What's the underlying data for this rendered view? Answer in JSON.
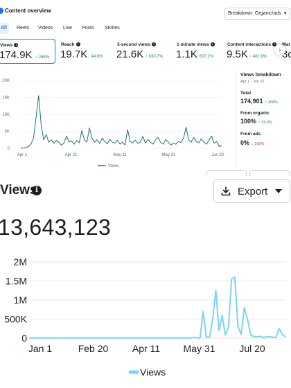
{
  "header": {
    "title": "Content overview",
    "breakdown_label": "Breakdown: Organic/ads"
  },
  "tabs": [
    {
      "label": "All",
      "active": true
    },
    {
      "label": "Reels",
      "active": false
    },
    {
      "label": "Videos",
      "active": false
    },
    {
      "label": "Live",
      "active": false
    },
    {
      "label": "Posts",
      "active": false
    },
    {
      "label": "Stories",
      "active": false
    }
  ],
  "metrics": [
    {
      "label": "Views",
      "value": "174.9K",
      "change": "↑ 268%",
      "selected": true
    },
    {
      "label": "Reach",
      "value": "19.7K",
      "change": "↑ 44.8%"
    },
    {
      "label": "3-second views",
      "value": "21.6K",
      "change": "↑ 630.7%"
    },
    {
      "label": "1-minute views",
      "value": "1.1K",
      "change": "↑ 507.2%"
    },
    {
      "label": "Content interactions",
      "value": "9.5K",
      "change": "↑ 482.9%"
    },
    {
      "label": "Wat",
      "value": "3d"
    }
  ],
  "icons": {
    "next": "chevron-right-icon",
    "info": "info-icon",
    "export": "download-icon",
    "caret": "caret-down-icon"
  },
  "colors": {
    "accent": "#1877f2",
    "small_line": "#1f6f73",
    "big_line": "#7ad3f7",
    "positive": "#1e8e3e",
    "negative": "#d93025"
  },
  "views_breakdown": {
    "title": "Views breakdown",
    "dates": "Apr 1 - Jun 22",
    "total_label": "Total",
    "total_value": "174,901",
    "total_change": "↑ 268%",
    "organic_label": "From organic",
    "organic_value": "100%",
    "organic_change": "↑ 29.9%",
    "ads_label": "From ads",
    "ads_value": "0%",
    "ads_change": "↓ 100%"
  },
  "views_section": {
    "title": "Views",
    "export_label": "Export",
    "total": "13,643,123"
  },
  "chart_data": [
    {
      "type": "line",
      "x_ticks": [
        "Apr 1",
        "Apr 21",
        "May 11",
        "May 31",
        "Jun 20"
      ],
      "y_ticks": [
        "0",
        "5K",
        "10K",
        "15K",
        "20K"
      ],
      "ylim": [
        0,
        20000
      ],
      "series": [
        {
          "name": "Views",
          "values": [
            0,
            100,
            200,
            500,
            1200,
            3000,
            9000,
            15500,
            7000,
            2500,
            4000,
            1800,
            2500,
            1500,
            2300,
            1700,
            900,
            1600,
            3600,
            1800,
            2200,
            1200,
            2300,
            1600,
            5200,
            2500,
            1800,
            6000,
            3000,
            1800,
            2500,
            1400,
            3000,
            2000,
            1300,
            2600,
            1800,
            1500,
            2400,
            1200,
            1800,
            1000,
            5500,
            2000,
            1600,
            2400,
            1400,
            1800,
            3500,
            1500,
            2600,
            1800,
            1200,
            2500,
            3200,
            1700,
            1200,
            2600,
            1800,
            1000,
            1500,
            1200,
            2000,
            1700,
            3000,
            6200,
            2500,
            1800,
            3200,
            2000,
            1600,
            2800,
            1800,
            1200,
            2400,
            3600,
            1500,
            2000,
            500,
            800
          ]
        }
      ]
    },
    {
      "type": "line",
      "x_ticks": [
        "Jan 1",
        "Feb 20",
        "Apr 11",
        "May 31",
        "Jul 20"
      ],
      "y_ticks": [
        "0",
        "500K",
        "1M",
        "1.5M",
        "2M"
      ],
      "ylim": [
        0,
        2000000
      ],
      "series": [
        {
          "name": "Views",
          "values": [
            5000,
            3000,
            8000,
            4000,
            6000,
            3000,
            5000,
            4000,
            7000,
            3000,
            4000,
            5000,
            3000,
            6000,
            4000,
            5000,
            3000,
            4000,
            5000,
            3000,
            4000,
            6000,
            3000,
            5000,
            4000,
            3000,
            5000,
            4000,
            6000,
            3000,
            4000,
            5000,
            3000,
            4000,
            5000,
            3000,
            6000,
            4000,
            5000,
            3000,
            4000,
            5000,
            3000,
            4000,
            6000,
            3000,
            5000,
            4000,
            3000,
            5000,
            4000,
            3000,
            20000,
            4000,
            6000,
            700000,
            30000,
            20000,
            500000,
            1250000,
            200000,
            600000,
            80000,
            300000,
            1550000,
            1600000,
            300000,
            100000,
            800000,
            500000,
            80000,
            40000,
            30000,
            50000,
            20000,
            30000,
            40000,
            20000,
            20000,
            250000,
            100000,
            30000
          ]
        }
      ]
    }
  ]
}
